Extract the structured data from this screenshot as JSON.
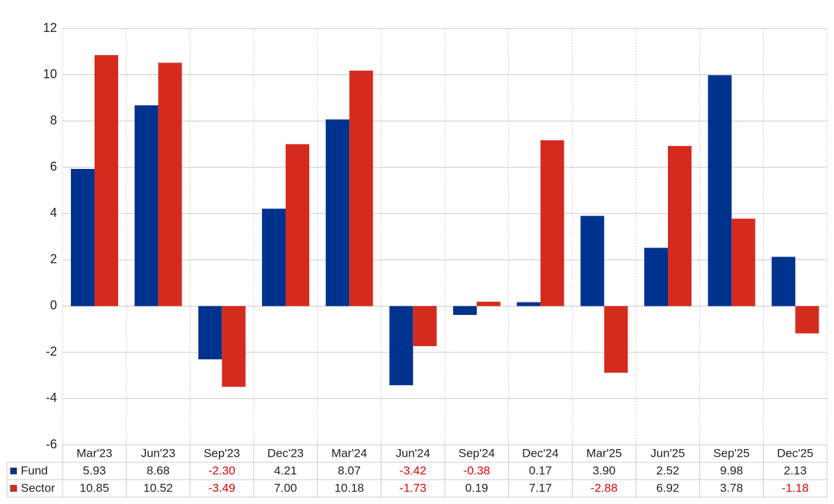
{
  "chart_data": {
    "type": "bar",
    "categories": [
      "Mar'23",
      "Jun'23",
      "Sep'23",
      "Dec'23",
      "Mar'24",
      "Jun'24",
      "Sep'24",
      "Dec'24",
      "Mar'25",
      "Jun'25",
      "Sep'25",
      "Dec'25"
    ],
    "series": [
      {
        "name": "Fund",
        "color": "#00338d",
        "values": [
          5.93,
          8.68,
          -2.3,
          4.21,
          8.07,
          -3.42,
          -0.38,
          0.17,
          3.9,
          2.52,
          9.98,
          2.13
        ],
        "value_labels": [
          "5.93",
          "8.68",
          "-2.30",
          "4.21",
          "8.07",
          "-3.42",
          "-0.38",
          "0.17",
          "3.90",
          "2.52",
          "9.98",
          "2.13"
        ]
      },
      {
        "name": "Sector",
        "color": "#d52b1e",
        "values": [
          10.85,
          10.52,
          -3.49,
          7.0,
          10.18,
          -1.73,
          0.19,
          7.17,
          -2.88,
          6.92,
          3.78,
          -1.18
        ],
        "value_labels": [
          "10.85",
          "10.52",
          "-3.49",
          "7.00",
          "10.18",
          "-1.73",
          "0.19",
          "7.17",
          "-2.88",
          "6.92",
          "3.78",
          "-1.18"
        ]
      }
    ],
    "ylim": [
      -6,
      12
    ],
    "yticks": [
      -6,
      -4,
      -2,
      0,
      2,
      4,
      6,
      8,
      10,
      12
    ],
    "grid": true
  }
}
